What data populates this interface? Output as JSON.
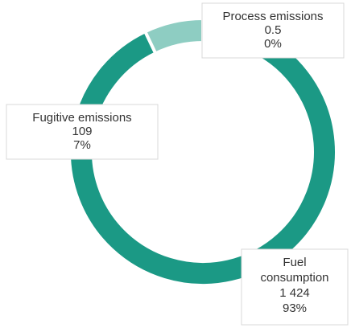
{
  "chart_data": {
    "type": "donut",
    "categories": [
      "Process emissions",
      "Fuel consumption",
      "Fugitive emissions"
    ],
    "values": [
      0.5,
      1424,
      109
    ],
    "value_labels": [
      "0.5",
      "1 424",
      "109"
    ],
    "percent_labels": [
      "0%",
      "93%",
      "7%"
    ],
    "colors": [
      "#8ecdc2",
      "#1b9985",
      "#8ecdc2"
    ]
  }
}
